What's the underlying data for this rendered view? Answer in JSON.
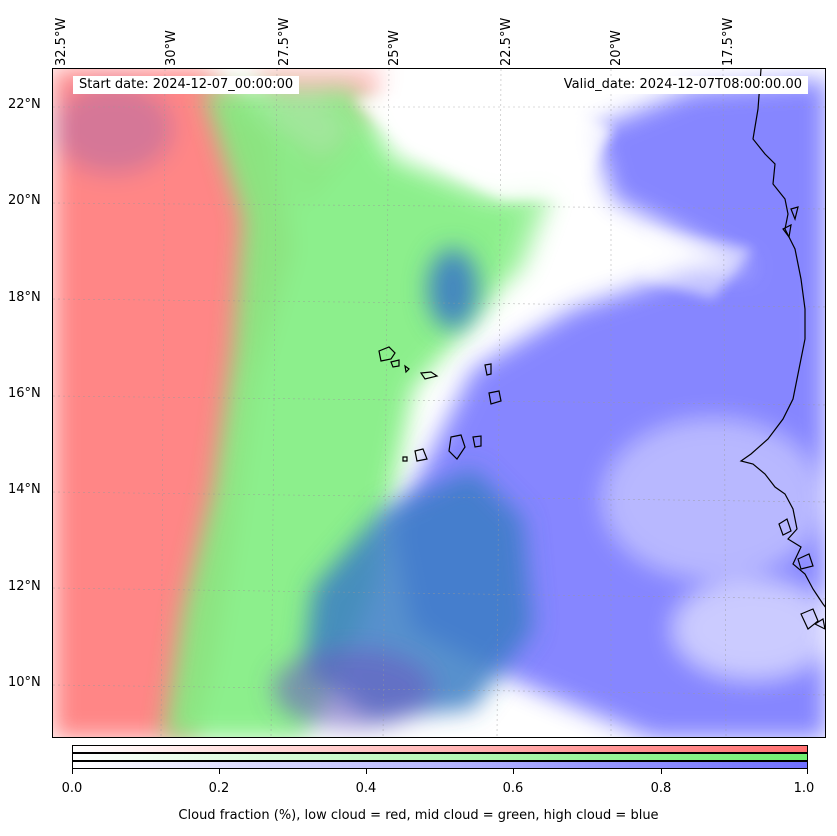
{
  "map": {
    "start_date": "Start date: 2024-12-07_00:00:00",
    "valid_date": "Valid_date: 2024-12-07T08:00:00.00",
    "longitude_labels": [
      "32.5°W",
      "30°W",
      "27.5°W",
      "25°W",
      "22.5°W",
      "20°W",
      "17.5°W"
    ],
    "latitude_labels": [
      "22°N",
      "20°N",
      "18°N",
      "16°N",
      "14°N",
      "12°N",
      "10°N"
    ],
    "layers": {
      "low_cloud_color": "#ff8080",
      "mid_cloud_color": "#80ee80",
      "high_cloud_color": "#8080ff"
    },
    "coastline_color": "#000000",
    "grid": true
  },
  "colorbar": {
    "ticks": [
      "0.0",
      "0.2",
      "0.4",
      "0.6",
      "0.8",
      "1.0"
    ],
    "label": "Cloud fraction (%), low cloud = red, mid cloud = green, high cloud = blue"
  }
}
